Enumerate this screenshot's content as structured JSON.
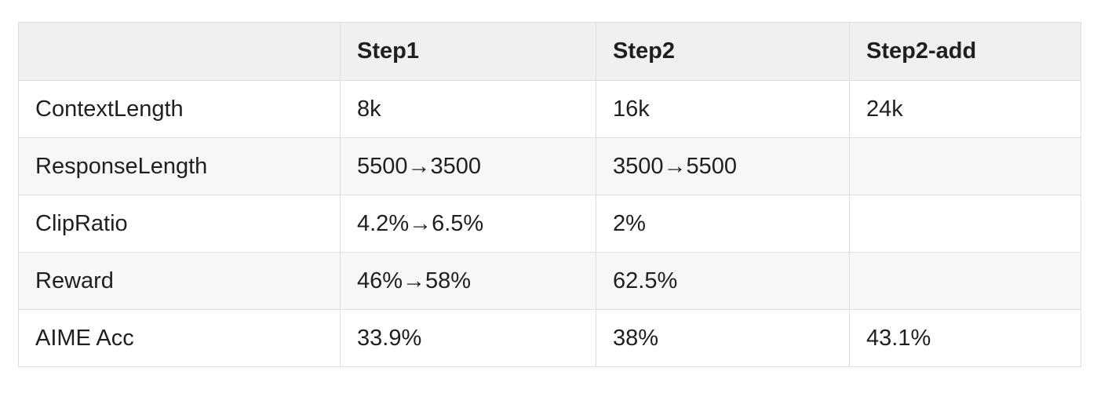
{
  "table": {
    "headers": [
      "",
      "Step1",
      "Step2",
      "Step2-add"
    ],
    "rows": [
      [
        "ContextLength",
        "8k",
        "16k",
        "24k"
      ],
      [
        "ResponseLength",
        "5500→3500",
        "3500→5500",
        ""
      ],
      [
        "ClipRatio",
        "4.2%→6.5%",
        "2%",
        ""
      ],
      [
        "Reward",
        "46%→58%",
        "62.5%",
        ""
      ],
      [
        "AIME Acc",
        "33.9%",
        "38%",
        "43.1%"
      ]
    ]
  }
}
